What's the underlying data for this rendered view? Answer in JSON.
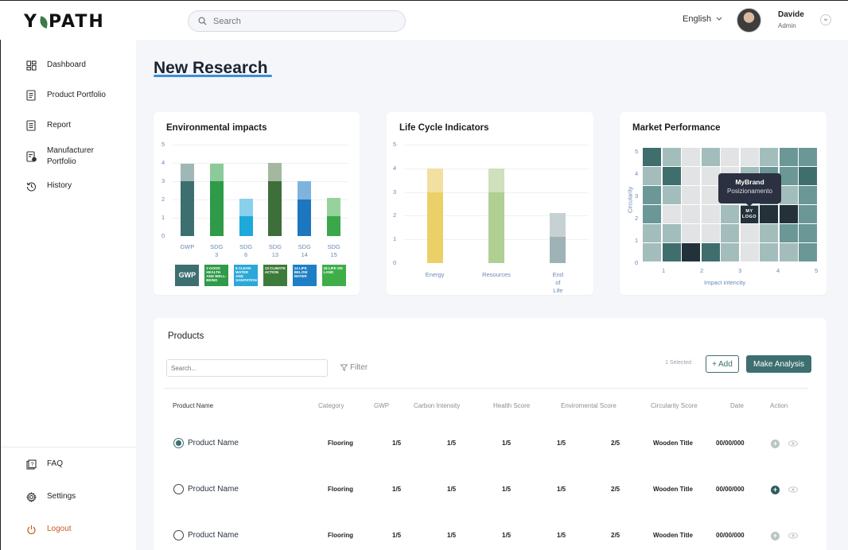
{
  "brand": {
    "logo_left": "Y",
    "logo_right": "PATH",
    "accent": "#3d6f70",
    "underline": "#3a8fd8"
  },
  "search": {
    "placeholder": "Search"
  },
  "header": {
    "language": "English",
    "user_name": "Davide",
    "user_role": "Admin"
  },
  "sidebar": {
    "items": [
      {
        "label": "Dashboard",
        "icon": "dashboard-icon"
      },
      {
        "label": "Product Portfolio",
        "icon": "document-icon"
      },
      {
        "label": "Report",
        "icon": "report-icon"
      },
      {
        "label": "Manufacturer Portfolio",
        "icon": "manufacturer-doc-icon"
      },
      {
        "label": "History",
        "icon": "history-icon"
      }
    ],
    "bottom": [
      {
        "label": "FAQ",
        "icon": "faq-icon"
      },
      {
        "label": "Settings",
        "icon": "gear-icon"
      },
      {
        "label": "Logout",
        "icon": "power-icon"
      }
    ]
  },
  "page": {
    "title": "New Research"
  },
  "env_card": {
    "title": "Environmental impacts",
    "badges": [
      {
        "label": "GWP",
        "color": "#3d6f70"
      },
      {
        "label": "3 GOOD HEALTH AND WELL-BEING",
        "color": "#2f9a48"
      },
      {
        "label": "6 CLEAN WATER AND SANITATION",
        "color": "#2aa8d8"
      },
      {
        "label": "13 CLIMATE ACTION",
        "color": "#3e7b3a"
      },
      {
        "label": "14 LIFE BELOW WATER",
        "color": "#1d7fc4"
      },
      {
        "label": "15 LIFE ON LAND",
        "color": "#3fae49"
      }
    ]
  },
  "life_card": {
    "title": "Life Cycle Indicators"
  },
  "market_card": {
    "title": "Market Performance",
    "tooltip_brand": "MyBrand",
    "tooltip_sub": "Posizionamento",
    "logo_label": "MY LOGO",
    "xlabel": "Impact intencity",
    "ylabel": "Circularity"
  },
  "chart_data": [
    {
      "type": "bar",
      "title": "Environmental impacts",
      "categories": [
        "GWP",
        "SDG 3",
        "SDG 6",
        "SDG 13",
        "SDG 14",
        "SDG 15"
      ],
      "yticks": [
        0,
        1,
        2,
        3,
        4,
        5
      ],
      "ylim": [
        0,
        5
      ],
      "series": [
        {
          "values": [
            3,
            3,
            1.1,
            3,
            2,
            1.1
          ],
          "colors": [
            "#3d6f70",
            "#2f9a48",
            "#1ea9db",
            "#3e6e3a",
            "#1d77be",
            "#3aa84a"
          ]
        },
        {
          "values": [
            0.95,
            0.95,
            0.95,
            1,
            1,
            1
          ],
          "colors": [
            "#9fb8b7",
            "#8ccb99",
            "#88d0ec",
            "#a4b89f",
            "#7fb3dc",
            "#96d39c"
          ]
        }
      ],
      "stacked": true
    },
    {
      "type": "bar",
      "title": "Life Cycle Indicators",
      "categories": [
        "Energy",
        "Resources",
        "End of Life"
      ],
      "yticks": [
        0,
        1,
        2,
        3,
        4,
        5
      ],
      "ylim": [
        0,
        5
      ],
      "series": [
        {
          "values": [
            3,
            3,
            1.1
          ],
          "colors": [
            "#ead067",
            "#b0cf93",
            "#9fb2b6"
          ]
        },
        {
          "values": [
            1,
            1,
            1
          ],
          "colors": [
            "#f1e0a0",
            "#cfe0bc",
            "#c6d1d4"
          ]
        }
      ],
      "stacked": true
    },
    {
      "type": "heatmap",
      "title": "Market Performance",
      "xlabel": "Impact intencity",
      "ylabel": "Circularity",
      "xticks": [
        1,
        2,
        3,
        4,
        5
      ],
      "yticks": [
        0,
        1,
        2,
        3,
        4,
        5
      ],
      "rows": [
        [
          3,
          1,
          0,
          1,
          0,
          0,
          1,
          2,
          2
        ],
        [
          1,
          3,
          0,
          0,
          0,
          1,
          2,
          2,
          3
        ],
        [
          2,
          1,
          0,
          0,
          0,
          0,
          3,
          1,
          2
        ],
        [
          2,
          0,
          0,
          0,
          1,
          1,
          4,
          4,
          2
        ],
        [
          1,
          1,
          0,
          0,
          1,
          0,
          1,
          2,
          2
        ],
        [
          1,
          3,
          4,
          3,
          1,
          0,
          1,
          1,
          2
        ]
      ],
      "palette": [
        "#e1e3e4",
        "#a3bdbc",
        "#6b9796",
        "#3f6e6d",
        "#23323a"
      ]
    }
  ],
  "products": {
    "title": "Products",
    "search_placeholder": "Search...",
    "filter_label": "Filter",
    "selected_text": "1 Selected",
    "add_label": "Add",
    "analysis_label": "Make Analysis",
    "columns": [
      "Product Name",
      "Category",
      "GWP",
      "Carbon Intensity",
      "Health Score",
      "Enviromental Score",
      "Circularity Score",
      "Date",
      "Action"
    ],
    "rows": [
      {
        "name": "Product Name",
        "category": "Flooring",
        "gwp": "1/5",
        "carbon": "1/5",
        "health": "1/5",
        "env": "1/5",
        "circ": "2/5",
        "material": "Wooden Title",
        "date": "00/00/000",
        "selected": true
      },
      {
        "name": "Product Name",
        "category": "Flooring",
        "gwp": "1/5",
        "carbon": "1/5",
        "health": "1/5",
        "env": "1/5",
        "circ": "2/5",
        "material": "Wooden Title",
        "date": "00/00/000",
        "selected": false
      },
      {
        "name": "Product Name",
        "category": "Flooring",
        "gwp": "1/5",
        "carbon": "1/5",
        "health": "1/5",
        "env": "1/5",
        "circ": "2/5",
        "material": "Wooden Title",
        "date": "00/00/000",
        "selected": false
      }
    ]
  }
}
